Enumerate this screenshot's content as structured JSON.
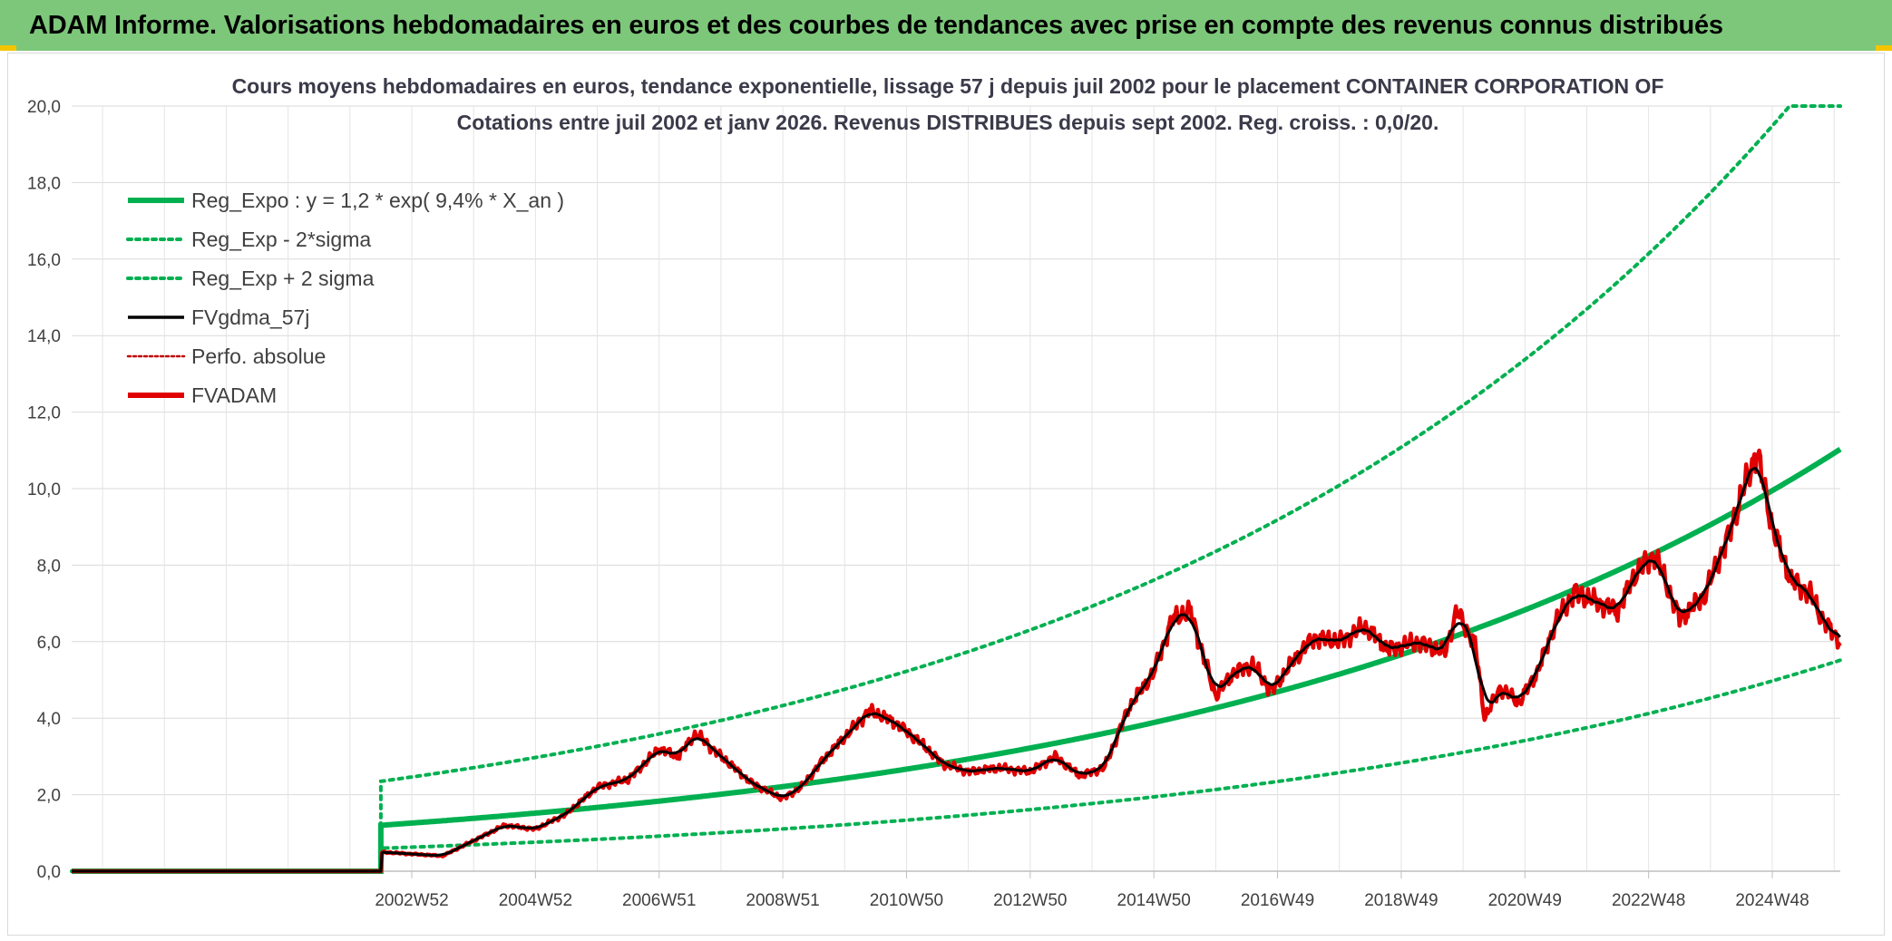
{
  "header": {
    "title": "ADAM Informe. Valorisations hebdomadaires en euros et des courbes de tendances avec prise en compte des revenus connus distribués",
    "background": "#7dc77a"
  },
  "chart_data": {
    "type": "line",
    "title_line1": "Cours moyens hebdomadaires en euros, tendance exponentielle, lissage 57 j depuis juil 2002 pour le placement CONTAINER CORPORATION OF",
    "title_line2": "Cotations entre juil 2002 et janv 2026. Revenus DISTRIBUES depuis sept 2002. Reg. croiss. : 0,0/20.",
    "ylim": [
      0,
      20
    ],
    "y_ticks": [
      "0,0",
      "2,0",
      "4,0",
      "6,0",
      "8,0",
      "10,0",
      "12,0",
      "14,0",
      "16,0",
      "18,0",
      "20,0"
    ],
    "x_ticks": [
      {
        "label": "2002W52",
        "t": 2003.0
      },
      {
        "label": "2004W52",
        "t": 2005.0
      },
      {
        "label": "2006W51",
        "t": 2007.0
      },
      {
        "label": "2008W51",
        "t": 2009.0
      },
      {
        "label": "2010W50",
        "t": 2011.0
      },
      {
        "label": "2012W50",
        "t": 2013.0
      },
      {
        "label": "2014W50",
        "t": 2015.0
      },
      {
        "label": "2016W49",
        "t": 2017.0
      },
      {
        "label": "2018W49",
        "t": 2019.0
      },
      {
        "label": "2020W49",
        "t": 2021.0
      },
      {
        "label": "2022W48",
        "t": 2023.0
      },
      {
        "label": "2024W48",
        "t": 2025.0
      }
    ],
    "x_range": [
      1997.5,
      2026.1
    ],
    "data_start": 2002.5,
    "legend": [
      {
        "name": "Reg_Expo : y = 1,2 * exp( 9,4% *  X_an )",
        "color": "#00b050",
        "style": "solid-thick"
      },
      {
        "name": "Reg_Exp - 2*sigma",
        "color": "#00b050",
        "style": "dotted"
      },
      {
        "name": "Reg_Exp + 2 sigma",
        "color": "#00b050",
        "style": "dotted"
      },
      {
        "name": "FVgdma_57j",
        "color": "#000000",
        "style": "solid"
      },
      {
        "name": "Perfo. absolue",
        "color": "#c00000",
        "style": "dotted-thin"
      },
      {
        "name": "FVADAM",
        "color": "#e00000",
        "style": "solid-thick"
      }
    ],
    "series": {
      "reg_expo": {
        "a": 1.2,
        "rate": 0.094,
        "t0": 2002.5
      },
      "reg_minus": {
        "a": 0.6,
        "rate": 0.094,
        "t0": 2002.5
      },
      "reg_plus": {
        "a": 2.35,
        "rate": 0.094,
        "t0": 2002.5,
        "cap": 20
      },
      "fvadam_keypoints": [
        [
          1997.5,
          0
        ],
        [
          2002.5,
          0
        ],
        [
          2002.52,
          0.5
        ],
        [
          2003.0,
          0.45
        ],
        [
          2003.5,
          0.4
        ],
        [
          2004.0,
          0.8
        ],
        [
          2004.5,
          1.2
        ],
        [
          2005.0,
          1.1
        ],
        [
          2005.5,
          1.5
        ],
        [
          2006.0,
          2.2
        ],
        [
          2006.5,
          2.4
        ],
        [
          2007.0,
          3.2
        ],
        [
          2007.3,
          3.0
        ],
        [
          2007.6,
          3.6
        ],
        [
          2008.0,
          3.0
        ],
        [
          2008.5,
          2.3
        ],
        [
          2009.0,
          1.9
        ],
        [
          2009.3,
          2.2
        ],
        [
          2009.7,
          3.0
        ],
        [
          2010.0,
          3.5
        ],
        [
          2010.4,
          4.2
        ],
        [
          2010.8,
          3.9
        ],
        [
          2011.2,
          3.4
        ],
        [
          2011.6,
          2.8
        ],
        [
          2012.0,
          2.6
        ],
        [
          2012.5,
          2.7
        ],
        [
          2013.0,
          2.6
        ],
        [
          2013.4,
          3.0
        ],
        [
          2013.8,
          2.5
        ],
        [
          2014.2,
          2.7
        ],
        [
          2014.6,
          4.3
        ],
        [
          2015.0,
          5.2
        ],
        [
          2015.3,
          6.6
        ],
        [
          2015.6,
          6.8
        ],
        [
          2015.8,
          5.6
        ],
        [
          2016.0,
          4.6
        ],
        [
          2016.3,
          5.2
        ],
        [
          2016.6,
          5.4
        ],
        [
          2016.9,
          4.7
        ],
        [
          2017.3,
          5.6
        ],
        [
          2017.6,
          6.1
        ],
        [
          2018.0,
          6.0
        ],
        [
          2018.4,
          6.4
        ],
        [
          2018.8,
          5.8
        ],
        [
          2019.3,
          6.0
        ],
        [
          2019.7,
          5.7
        ],
        [
          2019.9,
          6.8
        ],
        [
          2020.2,
          5.9
        ],
        [
          2020.35,
          4.0
        ],
        [
          2020.6,
          4.8
        ],
        [
          2020.9,
          4.4
        ],
        [
          2021.2,
          5.2
        ],
        [
          2021.5,
          6.5
        ],
        [
          2021.8,
          7.3
        ],
        [
          2022.2,
          7.0
        ],
        [
          2022.5,
          6.8
        ],
        [
          2022.8,
          7.8
        ],
        [
          2023.1,
          8.3
        ],
        [
          2023.5,
          6.6
        ],
        [
          2023.9,
          7.2
        ],
        [
          2024.3,
          8.8
        ],
        [
          2024.6,
          10.3
        ],
        [
          2024.75,
          11.0
        ],
        [
          2025.0,
          9.0
        ],
        [
          2025.3,
          7.6
        ],
        [
          2025.6,
          7.3
        ],
        [
          2025.8,
          6.6
        ],
        [
          2026.1,
          6.0
        ]
      ],
      "fvgdma_window": 0.16
    }
  }
}
